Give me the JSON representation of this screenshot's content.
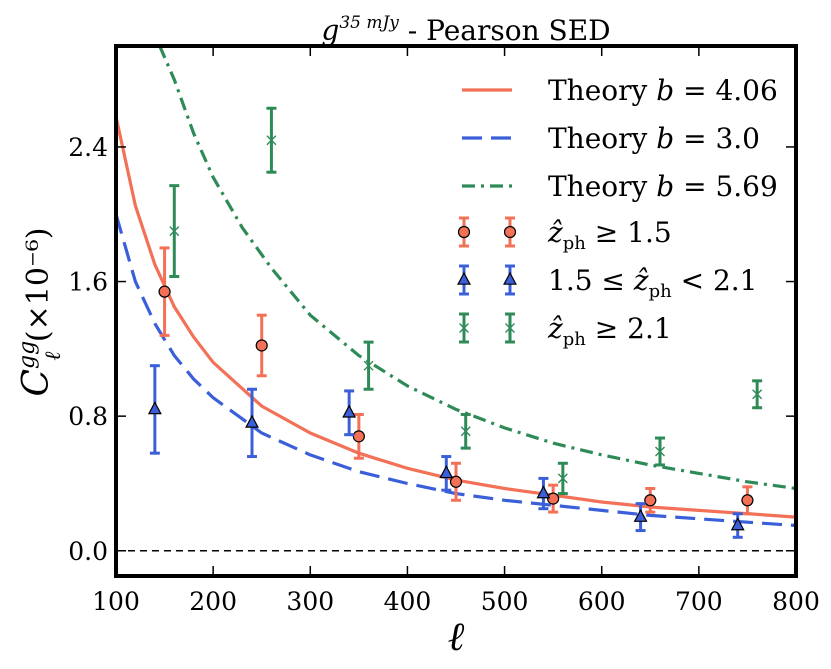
{
  "chart_data": {
    "type": "line",
    "title": "g^{35 mJy} - Pearson SED",
    "title_parts": {
      "base": "g",
      "superscript": "35 mJy",
      "rest": " - Pearson SED"
    },
    "xlabel": "ℓ",
    "ylabel_parts": {
      "base": "C",
      "superscript": "gg",
      "subscript": "ℓ",
      "rest": " (×10⁻⁶)"
    },
    "xlim": [
      100,
      800
    ],
    "ylim": [
      -0.15,
      3.0
    ],
    "xticks": [
      100,
      200,
      300,
      400,
      500,
      600,
      700,
      800
    ],
    "yticks": [
      0.0,
      0.8,
      1.6,
      2.4
    ],
    "ytick_labels": [
      "0.0",
      "0.8",
      "1.6",
      "2.4"
    ],
    "grid": false,
    "legend_position": "top-right",
    "colors": {
      "orange": "#f27157",
      "blue": "#3b5fd9",
      "green": "#2e8b57"
    },
    "theory_curves": [
      {
        "name": "Theory b = 4.06",
        "label_text": "Theory ",
        "label_math": "b = 4.06",
        "color": "#f27157",
        "dash": "solid",
        "x": [
          100,
          120,
          140,
          160,
          180,
          200,
          250,
          300,
          350,
          400,
          450,
          500,
          550,
          600,
          650,
          700,
          750,
          800
        ],
        "y": [
          2.58,
          2.05,
          1.7,
          1.45,
          1.27,
          1.12,
          0.86,
          0.7,
          0.58,
          0.49,
          0.42,
          0.37,
          0.33,
          0.29,
          0.26,
          0.24,
          0.22,
          0.2
        ]
      },
      {
        "name": "Theory b = 3.0",
        "label_text": "Theory ",
        "label_math": "b = 3.0",
        "color": "#3b5fd9",
        "dash": "dashed",
        "x": [
          100,
          120,
          140,
          160,
          180,
          200,
          250,
          300,
          350,
          400,
          450,
          500,
          550,
          600,
          650,
          700,
          750,
          800
        ],
        "y": [
          2.0,
          1.6,
          1.35,
          1.16,
          1.02,
          0.91,
          0.7,
          0.57,
          0.47,
          0.4,
          0.34,
          0.3,
          0.27,
          0.24,
          0.21,
          0.19,
          0.17,
          0.15
        ]
      },
      {
        "name": "Theory b = 5.69",
        "label_text": "Theory ",
        "label_math": "b = 5.69",
        "color": "#2e8b57",
        "dash": "dashdot",
        "x": [
          145,
          160,
          180,
          200,
          230,
          260,
          300,
          350,
          400,
          450,
          500,
          550,
          600,
          650,
          700,
          750,
          800
        ],
        "y": [
          3.0,
          2.8,
          2.48,
          2.22,
          1.92,
          1.68,
          1.4,
          1.16,
          0.98,
          0.84,
          0.73,
          0.64,
          0.57,
          0.51,
          0.46,
          0.41,
          0.37
        ]
      }
    ],
    "series": [
      {
        "name": "ẑph ≥ 1.5",
        "label_math": "ẑ_ph ≥ 1.5",
        "color": "#f27157",
        "marker": "circle",
        "x": [
          150,
          250,
          350,
          450,
          550,
          650,
          750
        ],
        "y": [
          1.54,
          1.22,
          0.68,
          0.41,
          0.31,
          0.3,
          0.3
        ],
        "err": [
          0.26,
          0.18,
          0.13,
          0.11,
          0.08,
          0.07,
          0.08
        ]
      },
      {
        "name": "1.5 ≤ ẑph < 2.1",
        "label_math": "1.5 ≤ ẑ_ph < 2.1",
        "color": "#3b5fd9",
        "marker": "triangle",
        "x": [
          140,
          240,
          340,
          440,
          540,
          640,
          740
        ],
        "y": [
          0.84,
          0.76,
          0.82,
          0.46,
          0.34,
          0.2,
          0.15
        ],
        "err": [
          0.26,
          0.2,
          0.13,
          0.1,
          0.09,
          0.08,
          0.07
        ]
      },
      {
        "name": "ẑph ≥ 2.1",
        "label_math": "ẑ_ph ≥ 2.1",
        "color": "#2e8b57",
        "marker": "x",
        "x": [
          160,
          260,
          360,
          460,
          560,
          660,
          760
        ],
        "y": [
          1.9,
          2.44,
          1.1,
          0.71,
          0.43,
          0.59,
          0.93
        ],
        "err": [
          0.27,
          0.19,
          0.14,
          0.1,
          0.09,
          0.08,
          0.08
        ]
      }
    ]
  }
}
